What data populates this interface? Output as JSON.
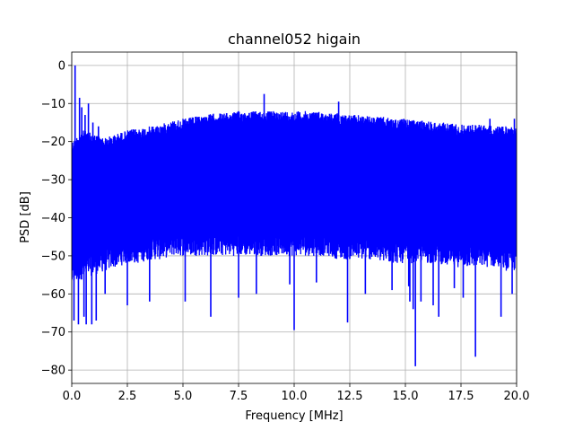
{
  "chart_data": {
    "type": "line",
    "title": "channel052 higain",
    "xlabel": "Frequency [MHz]",
    "ylabel": "PSD [dB]",
    "xlim": [
      0,
      20
    ],
    "ylim": [
      -83.5,
      3.5
    ],
    "xticks": [
      0,
      2.5,
      5,
      7.5,
      10,
      12.5,
      15,
      17.5,
      20
    ],
    "xtick_labels": [
      "0.0",
      "2.5",
      "5.0",
      "7.5",
      "10.0",
      "12.5",
      "15.0",
      "17.5",
      "20.0"
    ],
    "yticks": [
      0,
      -10,
      -20,
      -30,
      -40,
      -50,
      -60,
      -70,
      -80
    ],
    "ytick_labels": [
      "0",
      "−10",
      "−20",
      "−30",
      "−40",
      "−50",
      "−60",
      "−70",
      "−80"
    ],
    "grid": true,
    "color": "#0000ff",
    "series": [
      {
        "envelope": {
          "x": [
            0.0,
            0.5,
            1.0,
            1.5,
            2.0,
            2.5,
            3.0,
            3.5,
            4.0,
            4.5,
            5.0,
            5.5,
            6.0,
            6.5,
            7.0,
            7.5,
            8.0,
            8.5,
            9.0,
            9.5,
            10.0,
            10.5,
            11.0,
            11.5,
            12.0,
            12.5,
            13.0,
            13.5,
            14.0,
            14.5,
            15.0,
            15.5,
            16.0,
            16.5,
            17.0,
            17.5,
            18.0,
            18.5,
            19.0,
            19.5,
            20.0
          ],
          "upper": [
            -20,
            -17,
            -18,
            -19,
            -18,
            -17,
            -16.5,
            -16,
            -15.5,
            -14.5,
            -14,
            -13.5,
            -13,
            -12.5,
            -12.5,
            -12,
            -12,
            -12,
            -12,
            -12,
            -12,
            -12,
            -12,
            -12.5,
            -12.5,
            -13,
            -13,
            -13.5,
            -13.5,
            -14,
            -14,
            -14.5,
            -14.5,
            -15,
            -15,
            -15.5,
            -15.5,
            -15.5,
            -16,
            -16,
            -16
          ],
          "lower": [
            -55,
            -53,
            -52,
            -51,
            -50,
            -49,
            -49,
            -48,
            -48,
            -47,
            -47,
            -47,
            -47,
            -47,
            -47,
            -47,
            -47,
            -47,
            -47,
            -47,
            -47,
            -47,
            -47,
            -47,
            -48,
            -48,
            -48,
            -48,
            -49,
            -49,
            -49,
            -49,
            -49,
            -49,
            -50,
            -50,
            -50,
            -50,
            -50,
            -51,
            -51
          ]
        },
        "peaks": [
          [
            0.15,
            0.0
          ],
          [
            0.35,
            -8.5
          ],
          [
            0.45,
            -11
          ],
          [
            0.6,
            -13
          ],
          [
            0.75,
            -10
          ],
          [
            0.95,
            -15
          ],
          [
            1.2,
            -16
          ],
          [
            8.65,
            -7.5
          ],
          [
            12.0,
            -9.5
          ],
          [
            18.8,
            -14
          ],
          [
            19.9,
            -14
          ]
        ],
        "dips": [
          [
            0.1,
            -67
          ],
          [
            0.3,
            -68
          ],
          [
            0.55,
            -66
          ],
          [
            0.65,
            -68
          ],
          [
            0.9,
            -68
          ],
          [
            1.1,
            -67
          ],
          [
            1.5,
            -60
          ],
          [
            2.5,
            -63
          ],
          [
            3.5,
            -62
          ],
          [
            5.1,
            -62
          ],
          [
            6.25,
            -66
          ],
          [
            7.5,
            -61
          ],
          [
            8.3,
            -60
          ],
          [
            9.8,
            -57.5
          ],
          [
            10.0,
            -69.5
          ],
          [
            11.0,
            -57
          ],
          [
            12.4,
            -67.5
          ],
          [
            13.2,
            -60
          ],
          [
            14.4,
            -59
          ],
          [
            15.15,
            -58
          ],
          [
            15.2,
            -62
          ],
          [
            15.35,
            -64
          ],
          [
            15.45,
            -79
          ],
          [
            15.7,
            -62
          ],
          [
            16.25,
            -63
          ],
          [
            16.5,
            -66
          ],
          [
            17.2,
            -58.5
          ],
          [
            17.6,
            -61
          ],
          [
            18.15,
            -76.5
          ],
          [
            19.3,
            -66
          ],
          [
            19.8,
            -60
          ]
        ]
      }
    ]
  }
}
